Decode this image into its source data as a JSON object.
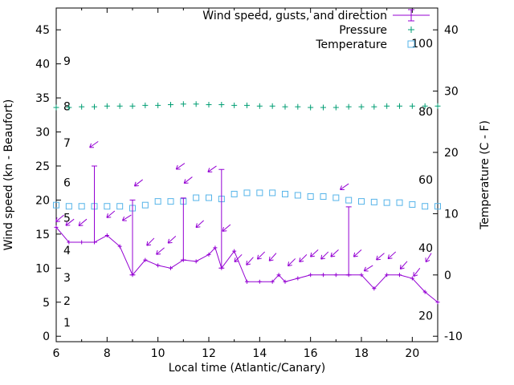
{
  "chart_data": {
    "type": "line",
    "title": "",
    "xlabel": "Local time (Atlantic/Canary)",
    "ylabel_left": "Wind speed (kn - Beaufort)",
    "ylabel_right": "Temperature (C - F)",
    "grid": false,
    "legend_position": "top-right-inside",
    "xlim": [
      6,
      21
    ],
    "y_left_lim": [
      -0.8,
      48.2
    ],
    "y_right_lim": [
      -10.89,
      43.56
    ],
    "x_ticks": [
      6,
      8,
      10,
      12,
      14,
      16,
      18,
      20
    ],
    "x_minor_ticks": [
      7,
      9,
      11,
      13,
      15,
      17,
      19
    ],
    "y_left_ticks": [
      0,
      5,
      10,
      15,
      20,
      25,
      30,
      35,
      40,
      45
    ],
    "y_right_ticks": [
      -10,
      0,
      10,
      20,
      30,
      40
    ],
    "beaufort_labels": [
      {
        "label": "1",
        "kn": 2.0
      },
      {
        "label": "2",
        "kn": 5.2
      },
      {
        "label": "3",
        "kn": 8.6
      },
      {
        "label": "4",
        "kn": 12.6
      },
      {
        "label": "5",
        "kn": 17.4
      },
      {
        "label": "6",
        "kn": 22.6
      },
      {
        "label": "7",
        "kn": 28.4
      },
      {
        "label": "8",
        "kn": 33.8
      },
      {
        "label": "9",
        "kn": 40.4
      }
    ],
    "fahrenheit_labels": [
      {
        "label": "20",
        "f": 20
      },
      {
        "label": "40",
        "f": 40
      },
      {
        "label": "60",
        "f": 60
      },
      {
        "label": "80",
        "f": 80
      },
      {
        "label": "100",
        "f": 100
      }
    ],
    "legend": [
      {
        "label": "Wind speed, gusts, and direction",
        "series": "wind"
      },
      {
        "label": "Pressure",
        "series": "pressure"
      },
      {
        "label": "Temperature",
        "series": "temperature"
      }
    ],
    "colors": {
      "wind": "#9400D3",
      "pressure": "#009E73",
      "temperature": "#56B4E9",
      "axis": "#000000"
    },
    "series": [
      {
        "name": "Wind speed, gusts, and direction",
        "axis": "left",
        "unit": "kn",
        "style": "line+errorbars+vectors",
        "x": [
          6,
          6.5,
          7,
          7.5,
          8,
          8.5,
          9,
          9.5,
          10,
          10.5,
          11,
          11.5,
          12,
          12.25,
          12.5,
          13,
          13.5,
          14,
          14.5,
          14.75,
          15,
          15.5,
          16,
          16.5,
          17,
          17.5,
          18,
          18.5,
          19,
          19.5,
          20,
          20.5,
          21
        ],
        "y": [
          16,
          13.8,
          13.8,
          13.8,
          14.8,
          13.2,
          9,
          11.2,
          10.4,
          10,
          11.2,
          11,
          12,
          13,
          10,
          12.5,
          8,
          8,
          8,
          9,
          8,
          8.5,
          9,
          9,
          9,
          9,
          9,
          7,
          9,
          9,
          8.5,
          6.5,
          5
        ],
        "gust": [
          null,
          null,
          null,
          25,
          null,
          null,
          20,
          null,
          null,
          null,
          20.3,
          null,
          null,
          null,
          24.5,
          null,
          null,
          null,
          null,
          null,
          null,
          null,
          null,
          null,
          null,
          19,
          null,
          null,
          null,
          null,
          null,
          null,
          null
        ],
        "arrows": [
          {
            "x": 6.3,
            "y": 17.8,
            "angle": 140
          },
          {
            "x": 6.7,
            "y": 17.2,
            "angle": 142
          },
          {
            "x": 7.2,
            "y": 17.2,
            "angle": 140
          },
          {
            "x": 7.65,
            "y": 28.6,
            "angle": 145
          },
          {
            "x": 8.3,
            "y": 18.4,
            "angle": 140
          },
          {
            "x": 8.95,
            "y": 17.8,
            "angle": 148
          },
          {
            "x": 9.4,
            "y": 23.0,
            "angle": 142
          },
          {
            "x": 9.85,
            "y": 14.4,
            "angle": 135
          },
          {
            "x": 10.25,
            "y": 13.0,
            "angle": 140
          },
          {
            "x": 10.7,
            "y": 14.7,
            "angle": 138
          },
          {
            "x": 11.05,
            "y": 25.4,
            "angle": 145
          },
          {
            "x": 11.35,
            "y": 23.4,
            "angle": 142
          },
          {
            "x": 11.8,
            "y": 17.0,
            "angle": 138
          },
          {
            "x": 12.3,
            "y": 25.0,
            "angle": 145
          },
          {
            "x": 12.85,
            "y": 16.4,
            "angle": 140
          },
          {
            "x": 13.3,
            "y": 12.0,
            "angle": 135
          },
          {
            "x": 13.75,
            "y": 11.6,
            "angle": 132
          },
          {
            "x": 14.2,
            "y": 12.4,
            "angle": 135
          },
          {
            "x": 14.65,
            "y": 12.2,
            "angle": 132
          },
          {
            "x": 15.4,
            "y": 11.4,
            "angle": 135
          },
          {
            "x": 15.85,
            "y": 12.0,
            "angle": 135
          },
          {
            "x": 16.3,
            "y": 12.7,
            "angle": 138
          },
          {
            "x": 16.7,
            "y": 12.4,
            "angle": 135
          },
          {
            "x": 17.1,
            "y": 12.7,
            "angle": 138
          },
          {
            "x": 17.5,
            "y": 22.4,
            "angle": 145
          },
          {
            "x": 18.0,
            "y": 12.7,
            "angle": 138
          },
          {
            "x": 18.45,
            "y": 10.4,
            "angle": 148
          },
          {
            "x": 18.9,
            "y": 12.2,
            "angle": 140
          },
          {
            "x": 19.35,
            "y": 12.4,
            "angle": 138
          },
          {
            "x": 19.8,
            "y": 11.0,
            "angle": 132
          },
          {
            "x": 20.3,
            "y": 10.0,
            "angle": 128
          },
          {
            "x": 20.75,
            "y": 12.2,
            "angle": 122
          }
        ]
      },
      {
        "name": "Pressure",
        "axis": "left",
        "style": "points",
        "marker": "plus",
        "x": [
          6,
          6.5,
          7,
          7.5,
          8,
          8.5,
          9,
          9.5,
          10,
          10.5,
          11,
          11.5,
          12,
          12.5,
          13,
          13.5,
          14,
          14.5,
          15,
          15.5,
          16,
          16.5,
          17,
          17.5,
          18,
          18.5,
          19,
          19.5,
          20,
          20.5,
          21
        ],
        "y": [
          33.6,
          33.6,
          33.7,
          33.7,
          33.8,
          33.8,
          33.8,
          33.9,
          33.9,
          34.0,
          34.1,
          34.1,
          34.0,
          34.0,
          33.9,
          33.9,
          33.8,
          33.8,
          33.7,
          33.7,
          33.6,
          33.6,
          33.6,
          33.7,
          33.7,
          33.7,
          33.8,
          33.8,
          33.8,
          33.8,
          33.8
        ]
      },
      {
        "name": "Temperature",
        "axis": "right",
        "unit": "C",
        "style": "points",
        "marker": "square",
        "x": [
          6,
          6.5,
          7,
          7.5,
          8,
          8.5,
          9,
          9.5,
          10,
          10.5,
          11,
          11.5,
          12,
          12.5,
          13,
          13.5,
          14,
          14.5,
          15,
          15.5,
          16,
          16.5,
          17,
          17.5,
          18,
          18.5,
          19,
          19.5,
          20,
          20.5,
          21
        ],
        "y": [
          11.4,
          11.2,
          11.2,
          11.2,
          11.2,
          11.2,
          10.9,
          11.4,
          12.0,
          12.0,
          12.0,
          12.6,
          12.6,
          12.4,
          13.2,
          13.4,
          13.4,
          13.4,
          13.2,
          13.0,
          12.8,
          12.8,
          12.6,
          12.2,
          12.0,
          11.9,
          11.8,
          11.8,
          11.5,
          11.2,
          11.2
        ]
      }
    ]
  }
}
